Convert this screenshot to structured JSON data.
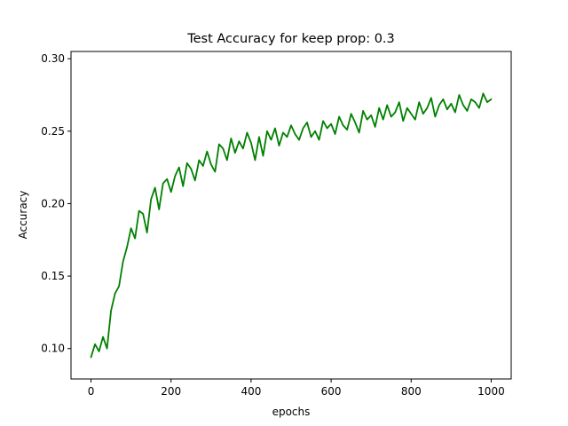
{
  "chart_data": {
    "type": "line",
    "title": "Test Accuracy for keep prop: 0.3",
    "xlabel": "epochs",
    "ylabel": "Accuracy",
    "xlim": [
      -50,
      1050
    ],
    "ylim": [
      0.079,
      0.305
    ],
    "xticks": [
      0,
      200,
      400,
      600,
      800,
      1000
    ],
    "yticks": [
      0.1,
      0.15,
      0.2,
      0.25,
      0.3
    ],
    "xtick_labels": [
      "0",
      "200",
      "400",
      "600",
      "800",
      "1000"
    ],
    "ytick_labels": [
      "0.10",
      "0.15",
      "0.20",
      "0.25",
      "0.30"
    ],
    "grid": false,
    "series": [
      {
        "color": "#008000",
        "x": [
          0,
          10,
          20,
          30,
          40,
          50,
          60,
          70,
          80,
          90,
          100,
          110,
          120,
          130,
          140,
          150,
          160,
          170,
          180,
          190,
          200,
          210,
          220,
          230,
          240,
          250,
          260,
          270,
          280,
          290,
          300,
          310,
          320,
          330,
          340,
          350,
          360,
          370,
          380,
          390,
          400,
          410,
          420,
          430,
          440,
          450,
          460,
          470,
          480,
          490,
          500,
          510,
          520,
          530,
          540,
          550,
          560,
          570,
          580,
          590,
          600,
          610,
          620,
          630,
          640,
          650,
          660,
          670,
          680,
          690,
          700,
          710,
          720,
          730,
          740,
          750,
          760,
          770,
          780,
          790,
          800,
          810,
          820,
          830,
          840,
          850,
          860,
          870,
          880,
          890,
          900,
          910,
          920,
          930,
          940,
          950,
          960,
          970,
          980,
          990,
          1000
        ],
        "y": [
          0.094,
          0.103,
          0.098,
          0.108,
          0.1,
          0.126,
          0.138,
          0.143,
          0.16,
          0.17,
          0.183,
          0.176,
          0.195,
          0.193,
          0.18,
          0.203,
          0.211,
          0.196,
          0.214,
          0.217,
          0.208,
          0.219,
          0.225,
          0.212,
          0.228,
          0.224,
          0.216,
          0.23,
          0.226,
          0.236,
          0.227,
          0.222,
          0.241,
          0.238,
          0.23,
          0.245,
          0.235,
          0.243,
          0.238,
          0.249,
          0.242,
          0.23,
          0.246,
          0.233,
          0.25,
          0.244,
          0.252,
          0.24,
          0.249,
          0.246,
          0.254,
          0.248,
          0.244,
          0.252,
          0.256,
          0.246,
          0.25,
          0.244,
          0.257,
          0.252,
          0.255,
          0.248,
          0.26,
          0.254,
          0.251,
          0.262,
          0.256,
          0.249,
          0.264,
          0.258,
          0.261,
          0.253,
          0.266,
          0.258,
          0.268,
          0.26,
          0.263,
          0.27,
          0.257,
          0.266,
          0.262,
          0.258,
          0.27,
          0.262,
          0.266,
          0.273,
          0.26,
          0.268,
          0.272,
          0.265,
          0.269,
          0.263,
          0.275,
          0.268,
          0.264,
          0.272,
          0.27,
          0.266,
          0.276,
          0.27,
          0.272
        ]
      }
    ]
  }
}
